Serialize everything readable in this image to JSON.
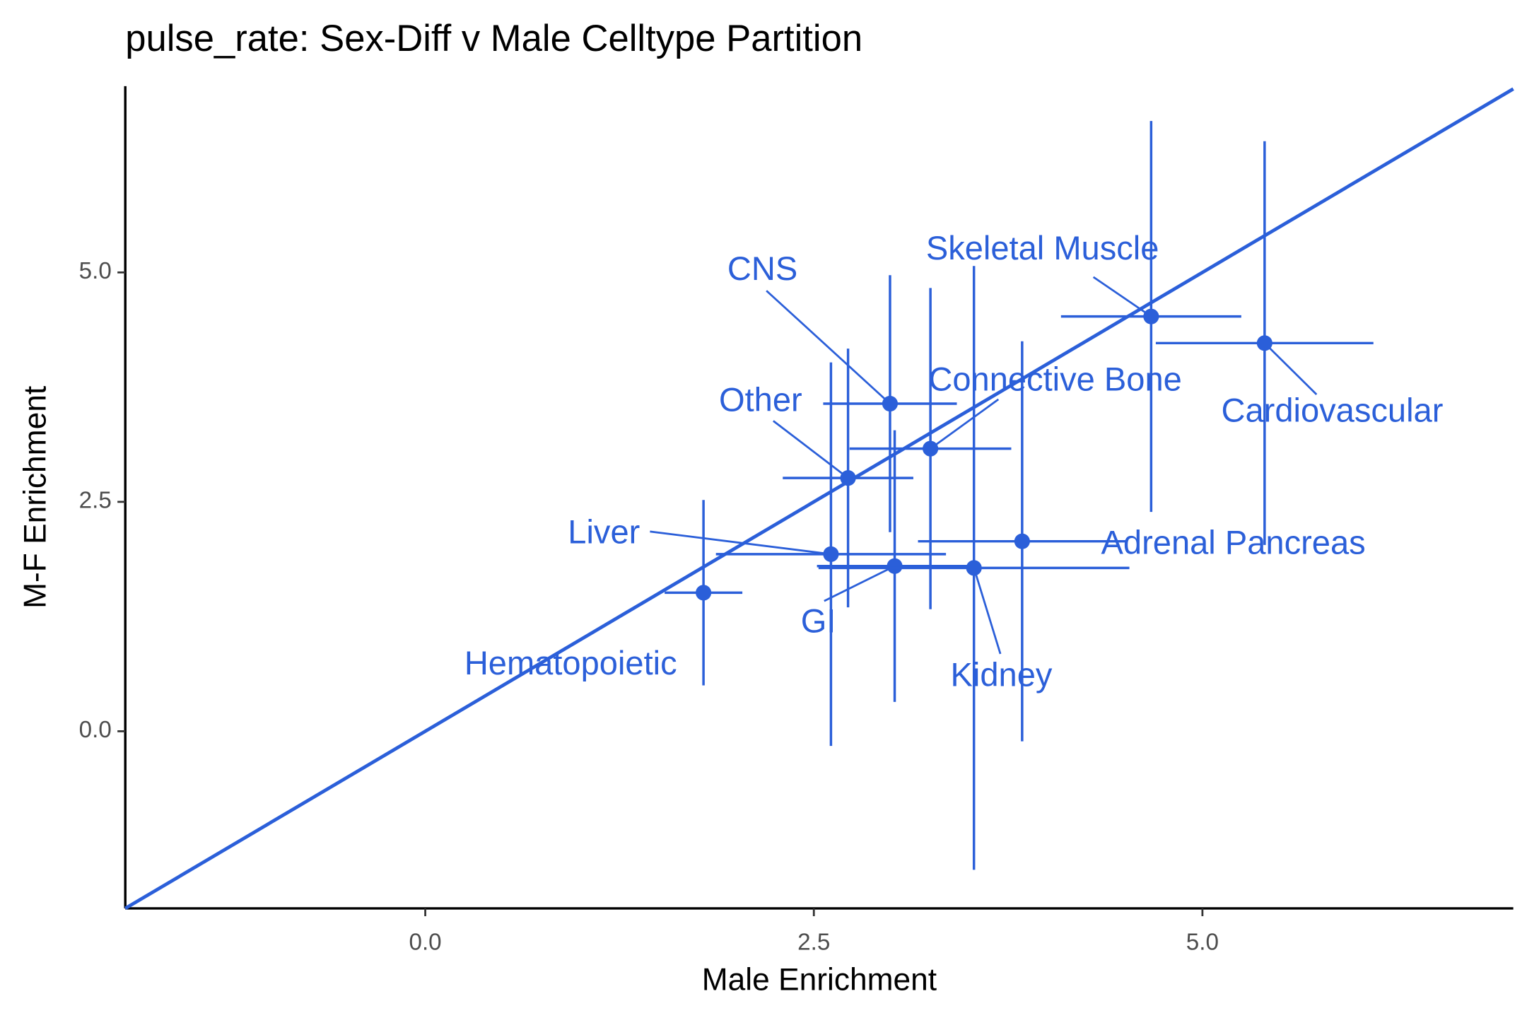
{
  "chart_data": {
    "type": "scatter",
    "title": "pulse_rate: Sex-Diff v Male Celltype Partition",
    "x_label": "Male Enrichment",
    "y_label": "M-F Enrichment",
    "xlim": [
      -1.93,
      7.0
    ],
    "ylim": [
      -1.93,
      7.03
    ],
    "xticks": [
      {
        "value": 0,
        "label": "0.0"
      },
      {
        "value": 2.5,
        "label": "2.5"
      },
      {
        "value": 5,
        "label": "5.0"
      }
    ],
    "yticks": [
      {
        "value": 0,
        "label": "0.0"
      },
      {
        "value": 2.5,
        "label": "2.5"
      },
      {
        "value": 5,
        "label": "5.0"
      }
    ],
    "color": "#2b5fd9",
    "diagonal": true,
    "grid": false,
    "labels": [
      "Skeletal Muscle",
      "Cardiovascular",
      "CNS",
      "Connective Bone",
      "Other",
      "Adrenal Pancreas",
      "Liver",
      "GI",
      "Kidney",
      "Hematopoietic"
    ],
    "x": [
      4.67,
      5.4,
      2.99,
      3.25,
      2.72,
      3.84,
      2.61,
      3.02,
      3.53,
      1.79
    ],
    "y": [
      4.52,
      4.23,
      3.57,
      3.08,
      2.76,
      2.07,
      1.93,
      1.8,
      1.78,
      1.51
    ],
    "xerr": [
      0.58,
      0.7,
      0.43,
      0.52,
      0.42,
      0.67,
      0.74,
      0.5,
      1.0,
      0.25
    ],
    "yerr": [
      2.13,
      2.2,
      1.4,
      1.75,
      1.41,
      2.18,
      2.09,
      1.48,
      3.29,
      1.01
    ]
  }
}
